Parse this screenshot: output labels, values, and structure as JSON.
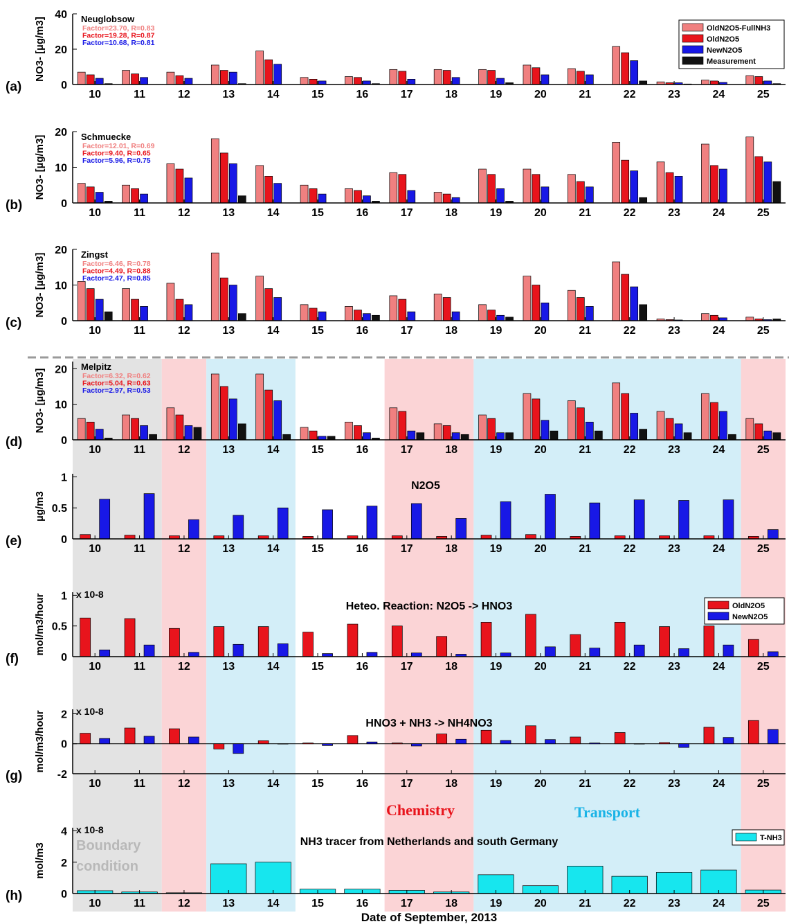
{
  "figure": {
    "xlabel": "Date of September, 2013",
    "region_labels": {
      "boundary": "Boundary\ncondition",
      "chemistry": "Chemistry",
      "transport": "Transport"
    },
    "region_colors": {
      "boundary": "#e3e3e3",
      "chemistry": "#fbd4d6",
      "transport": "#d3eef8"
    },
    "regions": [
      {
        "type": "boundary",
        "from": 10,
        "to": 11
      },
      {
        "type": "chemistry",
        "from": 12,
        "to": 12
      },
      {
        "type": "transport",
        "from": 13,
        "to": 14
      },
      {
        "type": "chemistry",
        "from": 17,
        "to": 18
      },
      {
        "type": "transport",
        "from": 19,
        "to": 24
      },
      {
        "type": "chemistry",
        "from": 25,
        "to": 25
      }
    ],
    "series_colors": {
      "OldN2O5-FullNH3": "#f08080",
      "OldN2O5": "#e8141c",
      "NewN2O5": "#1818e6",
      "Measurement": "#111111",
      "T-NH3": "#17e6ee"
    }
  },
  "chart_data": [
    {
      "panel": "(a)",
      "type": "bar",
      "station": "Neuglobsow",
      "ylabel": "NO3- [µg/m3]",
      "ylim": [
        0,
        40
      ],
      "yticks": [
        0,
        20,
        40
      ],
      "categories": [
        "10",
        "11",
        "12",
        "13",
        "14",
        "15",
        "16",
        "17",
        "18",
        "19",
        "20",
        "21",
        "22",
        "23",
        "24",
        "25"
      ],
      "stats": [
        {
          "text": "Factor=23.70, R=0.83",
          "color": "#f08080"
        },
        {
          "text": "Factor=19.28, R=0.87",
          "color": "#e8141c"
        },
        {
          "text": "Factor=10.68, R=0.81",
          "color": "#1818e6"
        }
      ],
      "legend": [
        "OldN2O5-FullNH3",
        "OldN2O5",
        "NewN2O5",
        "Measurement"
      ],
      "series": [
        {
          "name": "OldN2O5-FullNH3",
          "values": [
            7,
            8,
            7,
            11,
            19,
            4,
            4.5,
            8.5,
            8.5,
            8.5,
            11,
            9,
            21.5,
            1.5,
            2.5,
            5
          ]
        },
        {
          "name": "OldN2O5",
          "values": [
            5.5,
            6,
            5,
            8,
            14,
            3,
            4,
            7.5,
            8,
            8,
            9.5,
            7.5,
            18,
            1,
            2,
            4.5
          ]
        },
        {
          "name": "NewN2O5",
          "values": [
            3.5,
            4,
            3.5,
            7,
            11.5,
            2,
            2,
            3,
            4,
            3.5,
            5.5,
            5.5,
            13.5,
            1,
            1.2,
            2
          ]
        },
        {
          "name": "Measurement",
          "values": [
            0.5,
            0,
            0,
            0.5,
            0,
            0,
            0.5,
            0,
            0,
            1,
            0,
            0,
            2,
            0.3,
            0,
            0.5
          ]
        }
      ]
    },
    {
      "panel": "(b)",
      "type": "bar",
      "station": "Schmuecke",
      "ylabel": "NO3- [µg/m3]",
      "ylim": [
        0,
        20
      ],
      "yticks": [
        0,
        10,
        20
      ],
      "categories": [
        "10",
        "11",
        "12",
        "13",
        "14",
        "15",
        "16",
        "17",
        "18",
        "19",
        "20",
        "21",
        "22",
        "23",
        "24",
        "25"
      ],
      "stats": [
        {
          "text": "Factor=12.01, R=0.69",
          "color": "#f08080"
        },
        {
          "text": "Factor=9.40, R=0.65",
          "color": "#e8141c"
        },
        {
          "text": "Factor=5.96, R=0.75",
          "color": "#1818e6"
        }
      ],
      "series": [
        {
          "name": "OldN2O5-FullNH3",
          "values": [
            5.5,
            5,
            11,
            18,
            10.5,
            5,
            4,
            8.5,
            3,
            9.5,
            9.5,
            8,
            17,
            11.5,
            16.5,
            18.5
          ]
        },
        {
          "name": "OldN2O5",
          "values": [
            4.5,
            4,
            9.5,
            14,
            7.5,
            4,
            3.5,
            8,
            2.5,
            8,
            8,
            6,
            12,
            8.5,
            10.5,
            13
          ]
        },
        {
          "name": "NewN2O5",
          "values": [
            3,
            2.5,
            7,
            11,
            5.5,
            2.5,
            2,
            3.5,
            1.5,
            4,
            4.5,
            4.5,
            9,
            7.5,
            9.5,
            11.5
          ]
        },
        {
          "name": "Measurement",
          "values": [
            0.5,
            0,
            0,
            2,
            0,
            0,
            0.5,
            0,
            0,
            0.5,
            0,
            0,
            1.5,
            0,
            0,
            6
          ]
        }
      ]
    },
    {
      "panel": "(c)",
      "type": "bar",
      "station": "Zingst",
      "ylabel": "NO3- [µg/m3]",
      "ylim": [
        0,
        20
      ],
      "yticks": [
        0,
        10,
        20
      ],
      "categories": [
        "10",
        "11",
        "12",
        "13",
        "14",
        "15",
        "16",
        "17",
        "18",
        "19",
        "20",
        "21",
        "22",
        "23",
        "24",
        "25"
      ],
      "stats": [
        {
          "text": "Factor=6.46, R=0.78",
          "color": "#f08080"
        },
        {
          "text": "Factor=4.49, R=0.88",
          "color": "#e8141c"
        },
        {
          "text": "Factor=2.47, R=0.85",
          "color": "#1818e6"
        }
      ],
      "series": [
        {
          "name": "OldN2O5-FullNH3",
          "values": [
            11,
            9,
            10.5,
            19,
            12.5,
            4.5,
            4,
            7,
            7.5,
            4.5,
            12.5,
            8.5,
            16.5,
            0.5,
            2,
            1
          ]
        },
        {
          "name": "OldN2O5",
          "values": [
            9,
            6,
            6,
            12,
            9,
            3.5,
            3,
            6,
            6.5,
            3,
            10,
            6.5,
            13,
            0.3,
            1.5,
            0.5
          ]
        },
        {
          "name": "NewN2O5",
          "values": [
            6,
            4,
            4.5,
            10,
            6.5,
            2.5,
            2,
            2.5,
            2.5,
            1.5,
            5,
            4,
            9.5,
            0.2,
            0.8,
            0.3
          ]
        },
        {
          "name": "Measurement",
          "values": [
            2.5,
            0,
            0,
            2,
            0,
            0,
            1.5,
            0,
            0,
            1,
            0,
            0,
            4.5,
            0,
            0,
            0.5
          ]
        }
      ]
    },
    {
      "panel": "(d)",
      "type": "bar",
      "station": "Melpitz",
      "ylabel": "NO3- [µg/m3]",
      "ylim": [
        0,
        22
      ],
      "yticks": [
        0,
        10,
        20
      ],
      "categories": [
        "10",
        "11",
        "12",
        "13",
        "14",
        "15",
        "16",
        "17",
        "18",
        "19",
        "20",
        "21",
        "22",
        "23",
        "24",
        "25"
      ],
      "stats": [
        {
          "text": "Factor=6.32, R=0.62",
          "color": "#f08080"
        },
        {
          "text": "Factor=5.04, R=0.63",
          "color": "#e8141c"
        },
        {
          "text": "Factor=2.97, R=0.53",
          "color": "#1818e6"
        }
      ],
      "series": [
        {
          "name": "OldN2O5-FullNH3",
          "values": [
            6,
            7,
            9,
            18.5,
            18.5,
            3.5,
            5,
            9,
            4.5,
            7,
            13,
            11,
            16,
            8,
            13,
            6
          ]
        },
        {
          "name": "OldN2O5",
          "values": [
            5,
            6,
            7,
            15,
            14,
            2.5,
            4,
            8,
            4,
            6,
            11.5,
            9,
            13,
            6,
            10.5,
            4.5
          ]
        },
        {
          "name": "NewN2O5",
          "values": [
            3,
            4,
            4,
            11.5,
            11,
            1,
            2,
            2.5,
            2,
            2,
            5.5,
            5,
            7.5,
            4.5,
            8,
            2.5
          ]
        },
        {
          "name": "Measurement",
          "values": [
            0.5,
            1.5,
            3.5,
            4.5,
            1.5,
            1,
            0.5,
            2,
            1.5,
            2,
            2.5,
            2.5,
            3,
            2,
            1.5,
            2
          ]
        }
      ]
    },
    {
      "panel": "(e)",
      "type": "bar",
      "title": "N2O5",
      "ylabel": "µg/m3",
      "ylim": [
        0,
        1.05
      ],
      "yticks": [
        0,
        0.5,
        1
      ],
      "categories": [
        "10",
        "11",
        "12",
        "13",
        "14",
        "15",
        "16",
        "17",
        "18",
        "19",
        "20",
        "21",
        "22",
        "23",
        "24",
        "25"
      ],
      "series": [
        {
          "name": "OldN2O5",
          "values": [
            0.07,
            0.06,
            0.05,
            0.05,
            0.05,
            0.04,
            0.05,
            0.05,
            0.04,
            0.06,
            0.07,
            0.04,
            0.05,
            0.05,
            0.05,
            0.04
          ]
        },
        {
          "name": "NewN2O5",
          "values": [
            0.64,
            0.73,
            0.31,
            0.38,
            0.5,
            0.47,
            0.53,
            0.57,
            0.33,
            0.6,
            0.72,
            0.58,
            0.63,
            0.62,
            0.63,
            0.15
          ]
        }
      ]
    },
    {
      "panel": "(f)",
      "type": "bar",
      "title": "Heteo. Reaction: N2O5 -> HNO3",
      "ylabel": "mol/m3/hour",
      "scale_label": "x 10-8",
      "ylim": [
        0,
        1.05
      ],
      "yticks": [
        0,
        0.5,
        1
      ],
      "categories": [
        "10",
        "11",
        "12",
        "13",
        "14",
        "15",
        "16",
        "17",
        "18",
        "19",
        "20",
        "21",
        "22",
        "23",
        "24",
        "25"
      ],
      "legend": [
        "OldN2O5",
        "NewN2O5"
      ],
      "series": [
        {
          "name": "OldN2O5",
          "values": [
            0.63,
            0.62,
            0.46,
            0.49,
            0.49,
            0.4,
            0.53,
            0.5,
            0.33,
            0.56,
            0.69,
            0.36,
            0.56,
            0.49,
            0.5,
            0.28
          ]
        },
        {
          "name": "NewN2O5",
          "values": [
            0.11,
            0.19,
            0.07,
            0.2,
            0.21,
            0.05,
            0.07,
            0.06,
            0.04,
            0.06,
            0.16,
            0.14,
            0.19,
            0.13,
            0.19,
            0.08
          ]
        }
      ]
    },
    {
      "panel": "(g)",
      "type": "bar",
      "title": "HNO3 + NH3 -> NH4NO3",
      "ylabel": "mol/m3/hour",
      "scale_label": "x 10-8",
      "ylim": [
        -2,
        2.3
      ],
      "yticks": [
        -2,
        0,
        2
      ],
      "categories": [
        "10",
        "11",
        "12",
        "13",
        "14",
        "15",
        "16",
        "17",
        "18",
        "19",
        "20",
        "21",
        "22",
        "23",
        "24",
        "25"
      ],
      "series": [
        {
          "name": "OldN2O5",
          "values": [
            0.7,
            1.05,
            1.0,
            -0.35,
            0.2,
            0.05,
            0.55,
            0.05,
            0.65,
            0.9,
            1.2,
            0.45,
            0.75,
            0.08,
            1.1,
            1.55
          ]
        },
        {
          "name": "NewN2O5",
          "values": [
            0.35,
            0.5,
            0.45,
            -0.65,
            0,
            -0.12,
            0.12,
            -0.15,
            0.3,
            0.22,
            0.28,
            0.05,
            0,
            -0.25,
            0.42,
            0.95
          ]
        }
      ]
    },
    {
      "panel": "(h)",
      "type": "bar",
      "title": "NH3 tracer from Netherlands and south Germany",
      "ylabel": "mol/m3",
      "scale_label": "x 10-8",
      "ylim": [
        0,
        4.2
      ],
      "yticks": [
        0,
        2,
        4
      ],
      "categories": [
        "10",
        "11",
        "12",
        "13",
        "14",
        "15",
        "16",
        "17",
        "18",
        "19",
        "20",
        "21",
        "22",
        "23",
        "24",
        "25"
      ],
      "legend": [
        "T-NH3"
      ],
      "series": [
        {
          "name": "T-NH3",
          "values": [
            0.18,
            0.1,
            0.05,
            1.9,
            2.0,
            0.28,
            0.28,
            0.2,
            0.1,
            1.2,
            0.5,
            1.75,
            1.1,
            1.35,
            1.5,
            0.22
          ]
        }
      ]
    }
  ]
}
